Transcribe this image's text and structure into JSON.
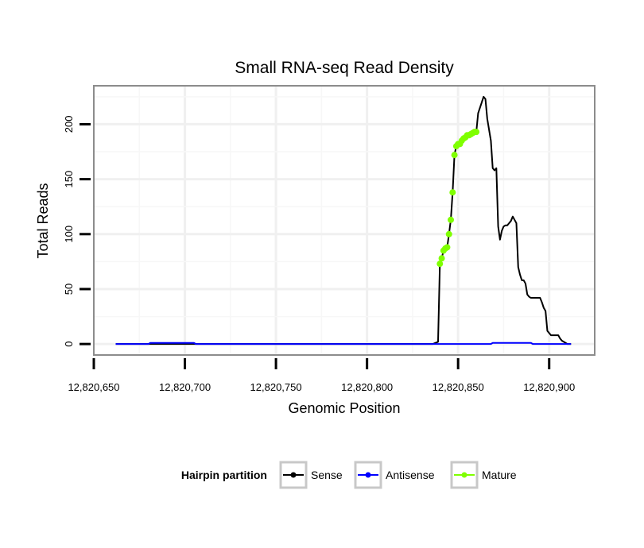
{
  "chart_data": {
    "type": "line",
    "title": "Small RNA-seq Read Density",
    "xlabel": "Genomic Position",
    "ylabel": "Total Reads",
    "xlim": [
      12820650,
      12820925
    ],
    "ylim": [
      -10,
      235
    ],
    "x_ticks": [
      12820650,
      12820700,
      12820750,
      12820800,
      12820850,
      12820900
    ],
    "x_tick_labels": [
      "12,820,650",
      "12,820,700",
      "12,820,750",
      "12,820,800",
      "12,820,850",
      "12,820,900"
    ],
    "y_ticks": [
      0,
      50,
      100,
      150,
      200
    ],
    "y_tick_labels": [
      "0",
      "50",
      "100",
      "150",
      "200"
    ],
    "grid": true,
    "legend": {
      "title": "Hairpin partition",
      "position": "bottom",
      "entries": [
        "Sense",
        "Antisense",
        "Mature"
      ]
    },
    "series": [
      {
        "name": "Sense",
        "color": "#000000",
        "x": [
          12820662,
          12820680,
          12820681,
          12820705,
          12820706,
          12820720,
          12820800,
          12820836,
          12820839,
          12820840,
          12820841,
          12820842,
          12820843,
          12820844,
          12820845,
          12820846,
          12820847,
          12820848,
          12820849,
          12820850,
          12820851,
          12820852,
          12820853,
          12820854,
          12820855,
          12820856,
          12820857,
          12820858,
          12820859,
          12820860,
          12820861,
          12820862,
          12820863,
          12820864,
          12820865,
          12820866,
          12820867,
          12820868,
          12820869,
          12820870,
          12820871,
          12820872,
          12820873,
          12820874,
          12820875,
          12820876,
          12820877,
          12820878,
          12820879,
          12820880,
          12820881,
          12820882,
          12820883,
          12820884,
          12820885,
          12820886,
          12820887,
          12820888,
          12820889,
          12820890,
          12820891,
          12820892,
          12820893,
          12820894,
          12820895,
          12820896,
          12820897,
          12820898,
          12820899,
          12820900,
          12820901,
          12820902,
          12820903,
          12820904,
          12820905,
          12820906,
          12820907,
          12820908,
          12820909,
          12820910,
          12820911,
          12820912
        ],
        "y": [
          0,
          0,
          0,
          0,
          0,
          0,
          0,
          0,
          2,
          73,
          78,
          85,
          87,
          88,
          100,
          113,
          138,
          172,
          180,
          182,
          182,
          185,
          187,
          188,
          190,
          190,
          191,
          192,
          193,
          193,
          210,
          215,
          220,
          225,
          223,
          205,
          195,
          185,
          160,
          158,
          160,
          107,
          95,
          103,
          107,
          108,
          108,
          110,
          112,
          116,
          113,
          110,
          70,
          63,
          58,
          58,
          55,
          45,
          43,
          42,
          42,
          42,
          42,
          42,
          42,
          38,
          33,
          30,
          12,
          10,
          8,
          8,
          8,
          8,
          8,
          5,
          3,
          2,
          1,
          0,
          0,
          0
        ]
      },
      {
        "name": "Antisense",
        "color": "#0000ff",
        "x": [
          12820662,
          12820680,
          12820681,
          12820705,
          12820706,
          12820840,
          12820868,
          12820869,
          12820890,
          12820891,
          12820912
        ],
        "y": [
          0,
          0,
          1,
          1,
          0,
          0,
          0,
          1,
          1,
          0,
          0
        ]
      },
      {
        "name": "Mature",
        "color": "#7fff00",
        "x": [
          12820840,
          12820841,
          12820842,
          12820843,
          12820844,
          12820845,
          12820846,
          12820847,
          12820848,
          12820849,
          12820850,
          12820851,
          12820852,
          12820853,
          12820854,
          12820855,
          12820856,
          12820857,
          12820858,
          12820859,
          12820860
        ],
        "y": [
          73,
          78,
          85,
          87,
          88,
          100,
          113,
          138,
          172,
          180,
          182,
          182,
          185,
          187,
          188,
          190,
          190,
          191,
          192,
          193,
          193
        ]
      }
    ]
  }
}
